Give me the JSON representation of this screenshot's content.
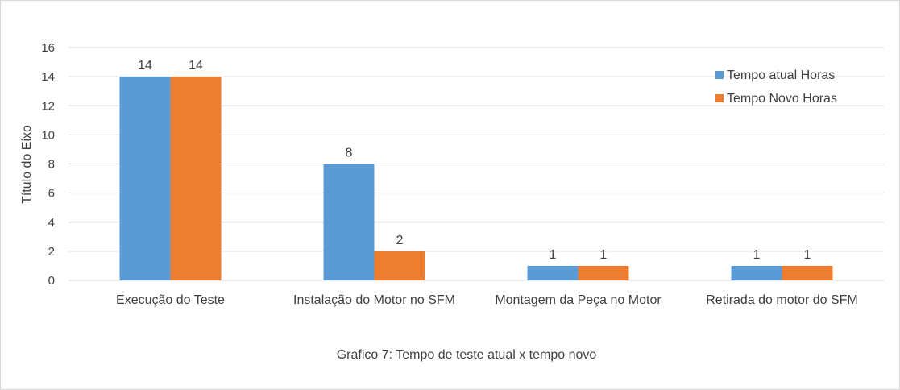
{
  "chart_data": {
    "type": "bar",
    "title": "",
    "caption": "Grafico 7: Tempo de teste atual x tempo novo",
    "xlabel": "",
    "ylabel": "Título do Eixo",
    "ylim": [
      0,
      16
    ],
    "yticks": [
      0,
      2,
      4,
      6,
      8,
      10,
      12,
      14,
      16
    ],
    "grid": true,
    "legend_position": "top-right",
    "categories": [
      "Execução do Teste",
      "Instalação do Motor no SFM",
      "Montagem da Peça no Motor",
      "Retirada do motor do SFM"
    ],
    "series": [
      {
        "name": "Tempo atual Horas",
        "color": "#5b9bd5",
        "values": [
          14,
          8,
          1,
          1
        ]
      },
      {
        "name": "Tempo Novo Horas",
        "color": "#ed7d31",
        "values": [
          14,
          2,
          1,
          1
        ]
      }
    ]
  }
}
